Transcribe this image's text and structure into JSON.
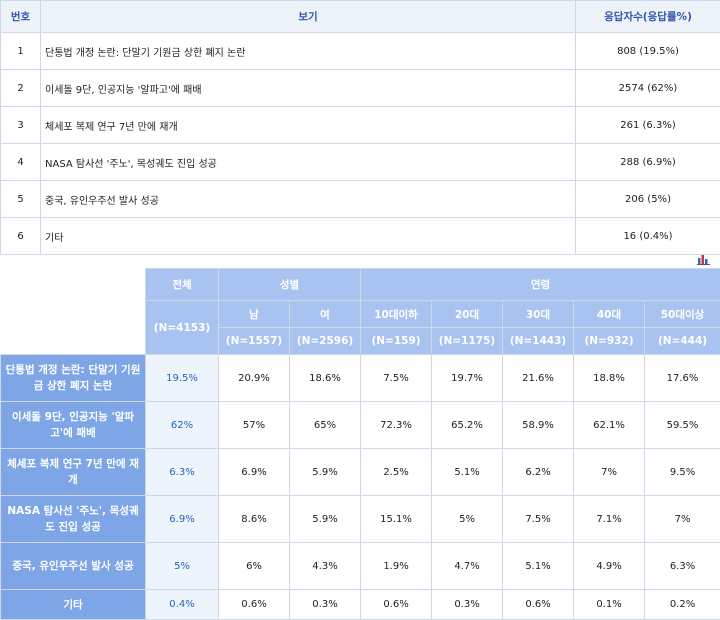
{
  "top_table": {
    "headers": {
      "no": "번호",
      "option": "보기",
      "responses": "응답자수(응답률%)"
    },
    "rows": [
      {
        "no": "1",
        "option": "단통법 개정 논란: 단말기 기원금 상한 폐지 논란",
        "value": "808 (19.5%)"
      },
      {
        "no": "2",
        "option": "이세돌 9단, 인공지능 '알파고'에 패배",
        "value": "2574 (62%)"
      },
      {
        "no": "3",
        "option": "체세포 복제 연구 7년 만에 재개",
        "value": "261 (6.3%)"
      },
      {
        "no": "4",
        "option": "NASA 탐사선 '주노', 목성궤도 진입 성공",
        "value": "288 (6.9%)"
      },
      {
        "no": "5",
        "option": "중국, 유인우주선 발사 성공",
        "value": "206 (5%)"
      },
      {
        "no": "6",
        "option": "기타",
        "value": "16 (0.4%)"
      }
    ]
  },
  "chart_icon": "bar-chart-icon",
  "cross_table": {
    "total_header": "전체",
    "total_n": "(N=4153)",
    "gender_header": "성별",
    "age_header": "연령",
    "columns": [
      {
        "label": "남",
        "n": "(N=1557)"
      },
      {
        "label": "여",
        "n": "(N=2596)"
      },
      {
        "label": "10대이하",
        "n": "(N=159)"
      },
      {
        "label": "20대",
        "n": "(N=1175)"
      },
      {
        "label": "30대",
        "n": "(N=1443)"
      },
      {
        "label": "40대",
        "n": "(N=932)"
      },
      {
        "label": "50대이상",
        "n": "(N=444)"
      }
    ],
    "rows": [
      {
        "label": "단통법 개정 논란: 단말기 기원금 상한 폐지 논란",
        "total": "19.5%",
        "values": [
          "20.9%",
          "18.6%",
          "7.5%",
          "19.7%",
          "21.6%",
          "18.8%",
          "17.6%"
        ]
      },
      {
        "label": "이세돌 9단, 인공지능 '알파고'에 패배",
        "total": "62%",
        "values": [
          "57%",
          "65%",
          "72.3%",
          "65.2%",
          "58.9%",
          "62.1%",
          "59.5%"
        ]
      },
      {
        "label": "체세포 복제 연구 7년 만에 재개",
        "total": "6.3%",
        "values": [
          "6.9%",
          "5.9%",
          "2.5%",
          "5.1%",
          "6.2%",
          "7%",
          "9.5%"
        ]
      },
      {
        "label": "NASA 탐사선 '주노', 목성궤도 진입 성공",
        "total": "6.9%",
        "values": [
          "8.6%",
          "5.9%",
          "15.1%",
          "5%",
          "7.5%",
          "7.1%",
          "7%"
        ]
      },
      {
        "label": "중국, 유인우주선 발사 성공",
        "total": "5%",
        "values": [
          "6%",
          "4.3%",
          "1.9%",
          "4.7%",
          "5.1%",
          "4.9%",
          "6.3%"
        ]
      },
      {
        "label": "기타",
        "total": "0.4%",
        "values": [
          "0.6%",
          "0.3%",
          "0.6%",
          "0.3%",
          "0.6%",
          "0.1%",
          "0.2%"
        ]
      }
    ]
  }
}
